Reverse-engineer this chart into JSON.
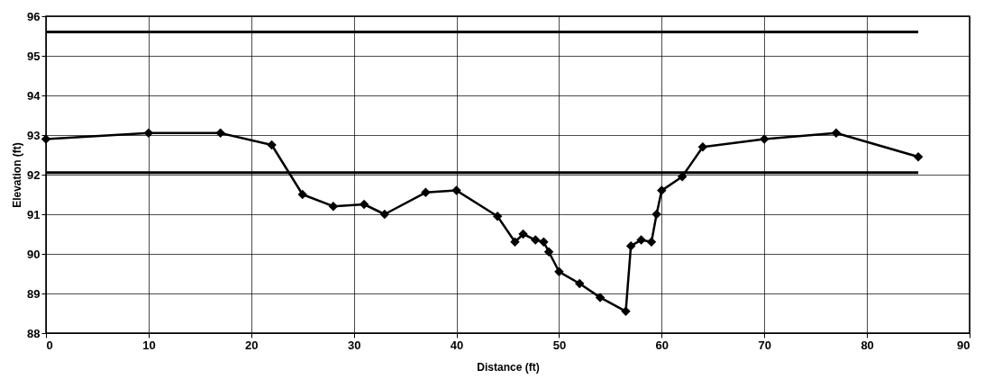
{
  "chart_data": {
    "type": "line",
    "xlabel": "Distance  (ft)",
    "ylabel": "Elevation (ft)",
    "xlim": [
      0,
      90
    ],
    "xticks": [
      0,
      10,
      20,
      30,
      40,
      50,
      60,
      70,
      80,
      90
    ],
    "ylim": [
      88,
      96
    ],
    "yticks": [
      88,
      89,
      90,
      91,
      92,
      93,
      94,
      95,
      96
    ],
    "grid": true,
    "series": [
      {
        "color": "#000000",
        "marker": "diamond",
        "x": [
          0,
          10,
          17,
          22,
          25,
          28,
          31,
          33,
          37,
          40,
          44,
          45.7,
          46.5,
          47.7,
          48.5,
          49,
          50,
          52,
          54,
          56.5,
          57,
          58,
          59,
          59.5,
          60,
          62,
          64,
          70,
          77,
          85
        ],
        "values": [
          92.9,
          93.05,
          93.05,
          92.75,
          91.5,
          91.2,
          91.25,
          91.0,
          91.55,
          91.6,
          90.95,
          90.3,
          90.5,
          90.35,
          90.3,
          90.05,
          89.55,
          89.25,
          88.9,
          88.55,
          90.2,
          90.35,
          90.3,
          91.0,
          91.6,
          91.95,
          92.7,
          92.9,
          93.05,
          92.45
        ]
      },
      {
        "color": "#000000",
        "marker": "none",
        "x": [
          0,
          85
        ],
        "values": [
          95.6,
          95.6
        ]
      },
      {
        "color": "#000000",
        "marker": "none",
        "x": [
          0,
          85
        ],
        "values": [
          92.05,
          92.05
        ]
      }
    ]
  }
}
